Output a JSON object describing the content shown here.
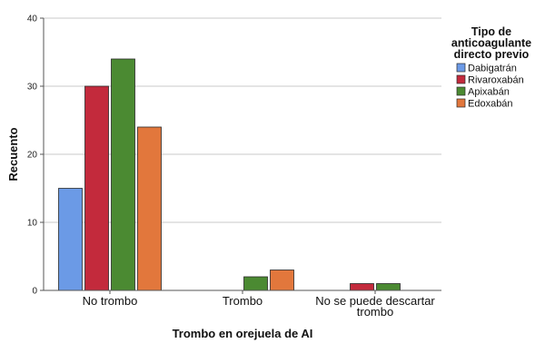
{
  "chart_data": {
    "type": "bar",
    "categories": [
      "No trombo",
      "Trombo",
      "No se puede descartar trombo"
    ],
    "category_label_lines": [
      [
        "No trombo"
      ],
      [
        "Trombo"
      ],
      [
        "No se puede descartar",
        "trombo"
      ]
    ],
    "series": [
      {
        "name": "Dabigatrán",
        "color": "#6b9ae6",
        "values": [
          15,
          0,
          0
        ]
      },
      {
        "name": "Rivaroxabán",
        "color": "#c32a3c",
        "values": [
          30,
          0,
          1
        ]
      },
      {
        "name": "Apixabán",
        "color": "#4b8a32",
        "values": [
          34,
          2,
          1
        ]
      },
      {
        "name": "Edoxabán",
        "color": "#e2773c",
        "values": [
          24,
          3,
          0
        ]
      }
    ],
    "xlabel": "Trombo en orejuela de AI",
    "ylabel": "Recuento",
    "ylim": [
      0,
      40
    ],
    "yticks": [
      0,
      10,
      20,
      30,
      40
    ],
    "grid": true,
    "legend": {
      "title_lines": [
        "Tipo de",
        "anticoagulante",
        "directo previo"
      ],
      "placement": "right"
    }
  }
}
